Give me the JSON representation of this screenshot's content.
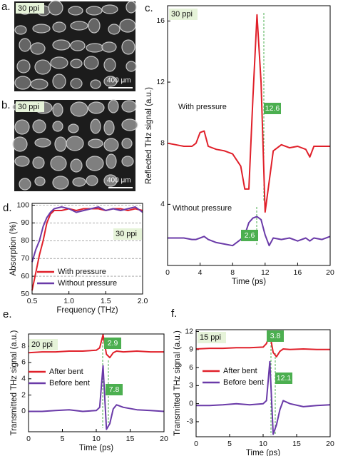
{
  "images": [
    {
      "panel": "a.",
      "tag": "30 ppi",
      "scale": "400 μm"
    },
    {
      "panel": "b.",
      "tag": "30 ppi",
      "scale": "400 μm"
    }
  ],
  "chart_data": [
    {
      "type": "line",
      "panel": "c.",
      "tag": "30 ppi",
      "legend": "inline",
      "xlabel": "Time (ps)",
      "ylabel": "Reflected THz signal (a.u.)",
      "xlim": [
        0,
        20
      ],
      "ylim": [
        0,
        17
      ],
      "xticks": [
        0,
        4,
        8,
        12,
        16,
        20
      ],
      "yticks": [
        4,
        8,
        12,
        16
      ],
      "x": [
        0,
        1,
        2,
        3,
        3.5,
        4,
        4.5,
        5,
        6,
        7,
        8,
        9,
        9.5,
        10,
        10.5,
        11,
        11.5,
        12,
        12.5,
        13,
        14,
        15,
        16,
        17,
        17.5,
        18,
        19,
        20
      ],
      "series": [
        {
          "name": "With pressure",
          "color": "#e0202a",
          "values": [
            8,
            7.9,
            7.8,
            7.8,
            8.0,
            8.7,
            8.8,
            7.8,
            7.6,
            7.5,
            7.3,
            6.5,
            5.0,
            5.0,
            11,
            16.4,
            12,
            3.5,
            5.5,
            7.5,
            7.9,
            7.7,
            7.8,
            7.6,
            7.1,
            7.8,
            7.8,
            7.8
          ]
        },
        {
          "name": "Without pressure",
          "color": "#6a3aa8",
          "values": [
            1.8,
            1.8,
            1.8,
            1.7,
            1.7,
            1.8,
            1.9,
            1.7,
            1.5,
            1.4,
            1.3,
            1.7,
            2.0,
            2.8,
            3.1,
            3.2,
            3.0,
            2.0,
            1.3,
            1.8,
            1.7,
            1.8,
            1.6,
            1.8,
            1.6,
            1.8,
            1.7,
            1.9
          ]
        }
      ],
      "annotations": [
        "12.6",
        "2.6"
      ]
    },
    {
      "type": "line",
      "panel": "d.",
      "tag": "30 ppi",
      "legend": "lower right",
      "grid": true,
      "xlabel": "Frequency (THz)",
      "ylabel": "Absorption (%)",
      "xlim": [
        0.5,
        2.0
      ],
      "ylim": [
        50,
        101
      ],
      "xticks": [
        0.5,
        {
          "value": 1,
          "label": "1.0"
        },
        1.5,
        {
          "value": 2,
          "label": "2.0"
        }
      ],
      "yticks": [
        50,
        60,
        70,
        80,
        90,
        100
      ],
      "x": [
        0.5,
        0.55,
        0.6,
        0.65,
        0.7,
        0.75,
        0.8,
        0.9,
        1.0,
        1.1,
        1.2,
        1.3,
        1.4,
        1.5,
        1.6,
        1.7,
        1.8,
        1.9,
        2.0
      ],
      "series": [
        {
          "name": "With pressure",
          "color": "#e0202a",
          "values": [
            52,
            62,
            72,
            80,
            90,
            95,
            97,
            97,
            98,
            97,
            98,
            98,
            98,
            97,
            98,
            98,
            97,
            98,
            97
          ]
        },
        {
          "name": "Without pressure",
          "color": "#6a3aa8",
          "values": [
            68,
            75,
            80,
            88,
            93,
            96,
            98,
            99,
            98,
            96,
            97,
            98,
            99,
            97,
            98,
            97,
            98,
            99,
            96
          ]
        }
      ],
      "annotations": []
    },
    {
      "type": "line",
      "panel": "e.",
      "tag": "20 ppi",
      "legend": "middle left",
      "xlabel": "Time (ps)",
      "ylabel": "Transmitted THz signal (a.u.)",
      "xlim": [
        0,
        20
      ],
      "ylim": [
        -2.5,
        9.5
      ],
      "xticks": [
        0,
        5,
        10,
        15,
        20
      ],
      "yticks": [
        0,
        2,
        4,
        6,
        8
      ],
      "x": [
        0,
        2,
        4,
        6,
        8,
        10,
        10.5,
        11,
        11.5,
        12,
        12.5,
        13,
        14,
        16,
        18,
        20
      ],
      "series": [
        {
          "name": "After  bent",
          "color": "#e0202a",
          "values": [
            7.2,
            7.3,
            7.3,
            7.4,
            7.4,
            7.5,
            7.8,
            9.4,
            7.0,
            6.6,
            7.2,
            7.4,
            7.3,
            7.4,
            7.3,
            7.3
          ]
        },
        {
          "name": "Before  bent",
          "color": "#6a3aa8",
          "values": [
            0,
            0,
            0.1,
            0.2,
            0,
            0.1,
            0.5,
            5.6,
            -2.2,
            -1.5,
            0.3,
            0.8,
            0.5,
            0.2,
            0.1,
            0
          ]
        }
      ],
      "annotations": [
        "2.9",
        "7.8"
      ]
    },
    {
      "type": "line",
      "panel": "f.",
      "tag": "15 ppi",
      "legend": "middle left",
      "xlabel": "Time (ps)",
      "ylabel": "Transmitted THz signal (a.u.)",
      "xlim": [
        0,
        20
      ],
      "ylim": [
        -5.5,
        12.3
      ],
      "xticks": [
        0,
        5,
        10,
        15,
        20
      ],
      "yticks": [
        -3,
        0,
        3,
        6,
        9,
        12
      ],
      "x": [
        0,
        2,
        4,
        6,
        8,
        10,
        10.5,
        11,
        11.5,
        12,
        12.5,
        13,
        14,
        16,
        18,
        20
      ],
      "series": [
        {
          "name": "After  bent",
          "color": "#e0202a",
          "values": [
            9.1,
            9.2,
            9.2,
            9.3,
            9.3,
            9.4,
            10,
            11.6,
            8.5,
            7.8,
            8.7,
            9.1,
            9.0,
            9.1,
            9.0,
            9.0
          ]
        },
        {
          "name": "Before  bent",
          "color": "#6a3aa8",
          "values": [
            -0.3,
            -0.3,
            -0.2,
            0,
            -0.2,
            0,
            0.5,
            7.0,
            -5.1,
            -3.5,
            -1,
            0.5,
            0,
            -0.5,
            -0.3,
            -0.2
          ]
        }
      ],
      "annotations": [
        "3.8",
        "12.1"
      ]
    }
  ]
}
